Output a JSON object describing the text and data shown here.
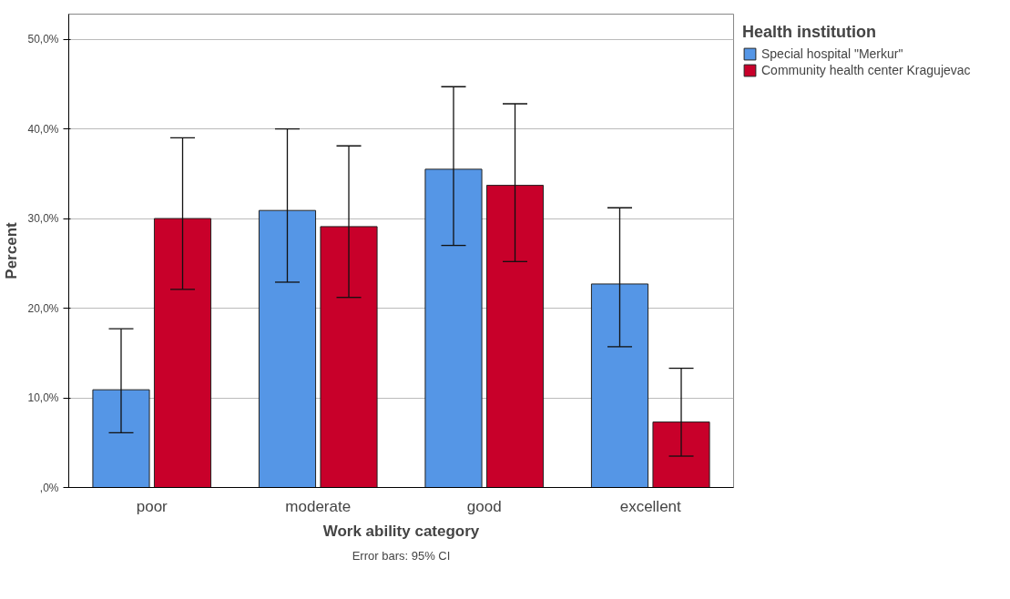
{
  "chart_data": {
    "type": "bar",
    "xlabel": "Work ability category",
    "ylabel": "Percent",
    "legend_title": "Health institution",
    "categories": [
      "poor",
      "moderate",
      "good",
      "excellent"
    ],
    "series": [
      {
        "name": "Special hospital \"Merkur\"",
        "color": "#5596e6",
        "values": [
          10.9,
          30.9,
          35.5,
          22.7
        ],
        "errors": [
          [
            6.1,
            17.7
          ],
          [
            22.9,
            40.0
          ],
          [
            27.0,
            44.7
          ],
          [
            15.7,
            31.2
          ]
        ]
      },
      {
        "name": "Community health center Kragujevac",
        "color": "#c8002a",
        "values": [
          30.0,
          29.1,
          33.7,
          7.3
        ],
        "errors": [
          [
            22.1,
            39.0
          ],
          [
            21.2,
            38.1
          ],
          [
            25.2,
            42.8
          ],
          [
            3.5,
            13.3
          ]
        ]
      }
    ],
    "ylim": [
      0,
      52.8
    ],
    "yticks": [
      {
        "value": 0,
        "label": ",0%"
      },
      {
        "value": 10,
        "label": "10,0%"
      },
      {
        "value": 20,
        "label": "20,0%"
      },
      {
        "value": 30,
        "label": "30,0%"
      },
      {
        "value": 40,
        "label": "40,0%"
      },
      {
        "value": 50,
        "label": "50,0%"
      }
    ],
    "grid": "y",
    "legend": "top right",
    "annotations": [
      "Error bars: 95% CI"
    ]
  }
}
